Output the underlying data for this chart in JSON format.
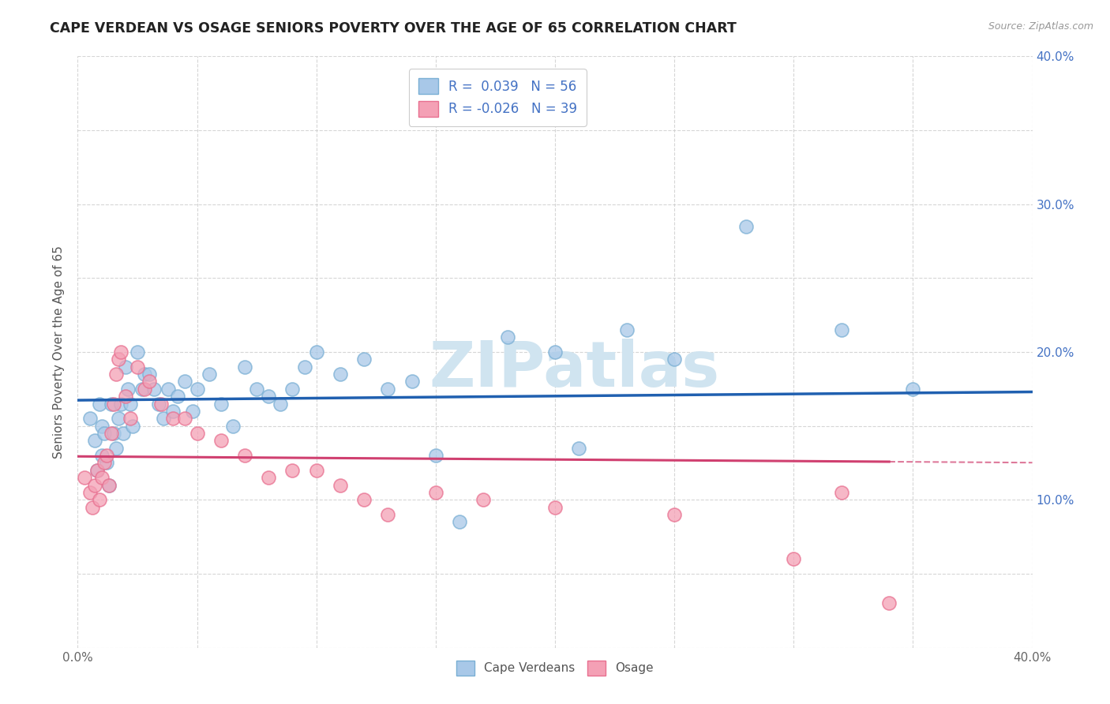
{
  "title": "CAPE VERDEAN VS OSAGE SENIORS POVERTY OVER THE AGE OF 65 CORRELATION CHART",
  "source": "Source: ZipAtlas.com",
  "ylabel": "Seniors Poverty Over the Age of 65",
  "xlim": [
    0,
    0.4
  ],
  "ylim": [
    0,
    0.4
  ],
  "blue_R": 0.039,
  "blue_N": 56,
  "pink_R": -0.026,
  "pink_N": 39,
  "blue_color": "#a8c8e8",
  "pink_color": "#f4a0b5",
  "blue_edge_color": "#7aafd4",
  "pink_edge_color": "#e87090",
  "blue_line_color": "#2060b0",
  "pink_line_color": "#d04070",
  "grid_color": "#cccccc",
  "background_color": "#ffffff",
  "right_tick_color": "#4472c4",
  "watermark_color": "#d8e8f0",
  "cape_verdean_x": [
    0.005,
    0.007,
    0.008,
    0.009,
    0.01,
    0.01,
    0.011,
    0.012,
    0.013,
    0.014,
    0.015,
    0.016,
    0.017,
    0.018,
    0.019,
    0.02,
    0.021,
    0.022,
    0.023,
    0.025,
    0.027,
    0.028,
    0.03,
    0.032,
    0.034,
    0.036,
    0.038,
    0.04,
    0.042,
    0.045,
    0.048,
    0.05,
    0.055,
    0.06,
    0.065,
    0.07,
    0.075,
    0.08,
    0.085,
    0.09,
    0.095,
    0.1,
    0.11,
    0.12,
    0.13,
    0.14,
    0.15,
    0.16,
    0.18,
    0.2,
    0.21,
    0.23,
    0.25,
    0.28,
    0.32,
    0.35
  ],
  "cape_verdean_y": [
    0.155,
    0.14,
    0.12,
    0.165,
    0.15,
    0.13,
    0.145,
    0.125,
    0.11,
    0.165,
    0.145,
    0.135,
    0.155,
    0.165,
    0.145,
    0.19,
    0.175,
    0.165,
    0.15,
    0.2,
    0.175,
    0.185,
    0.185,
    0.175,
    0.165,
    0.155,
    0.175,
    0.16,
    0.17,
    0.18,
    0.16,
    0.175,
    0.185,
    0.165,
    0.15,
    0.19,
    0.175,
    0.17,
    0.165,
    0.175,
    0.19,
    0.2,
    0.185,
    0.195,
    0.175,
    0.18,
    0.13,
    0.085,
    0.21,
    0.2,
    0.135,
    0.215,
    0.195,
    0.285,
    0.215,
    0.175
  ],
  "osage_x": [
    0.003,
    0.005,
    0.006,
    0.007,
    0.008,
    0.009,
    0.01,
    0.011,
    0.012,
    0.013,
    0.014,
    0.015,
    0.016,
    0.017,
    0.018,
    0.02,
    0.022,
    0.025,
    0.028,
    0.03,
    0.035,
    0.04,
    0.045,
    0.05,
    0.06,
    0.07,
    0.08,
    0.09,
    0.1,
    0.11,
    0.12,
    0.13,
    0.15,
    0.17,
    0.2,
    0.25,
    0.3,
    0.32,
    0.34
  ],
  "osage_y": [
    0.115,
    0.105,
    0.095,
    0.11,
    0.12,
    0.1,
    0.115,
    0.125,
    0.13,
    0.11,
    0.145,
    0.165,
    0.185,
    0.195,
    0.2,
    0.17,
    0.155,
    0.19,
    0.175,
    0.18,
    0.165,
    0.155,
    0.155,
    0.145,
    0.14,
    0.13,
    0.115,
    0.12,
    0.12,
    0.11,
    0.1,
    0.09,
    0.105,
    0.1,
    0.095,
    0.09,
    0.06,
    0.105,
    0.03
  ]
}
